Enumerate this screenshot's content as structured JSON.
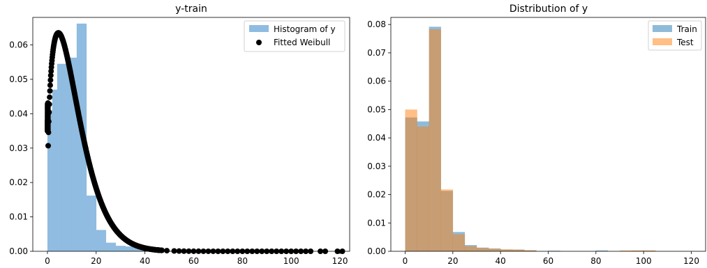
{
  "chart_data": [
    {
      "type": "histogram",
      "title": "y-train",
      "xlim": [
        -6,
        124
      ],
      "ylim": [
        0,
        0.068
      ],
      "xticks": [
        "0",
        "20",
        "40",
        "60",
        "80",
        "100",
        "120"
      ],
      "xtick_values": [
        0,
        20,
        40,
        60,
        80,
        100,
        120
      ],
      "yticks": [
        "0.00",
        "0.01",
        "0.02",
        "0.03",
        "0.04",
        "0.05",
        "0.06"
      ],
      "ytick_values": [
        0,
        0.01,
        0.02,
        0.03,
        0.04,
        0.05,
        0.06
      ],
      "legend_position": "top-right",
      "series": [
        {
          "name": "Histogram of y",
          "kind": "bars",
          "color": "#8fbce0",
          "bins": [
            {
              "x0": 0,
              "x1": 2,
              "value": 0.041
            },
            {
              "x0": 2,
              "x1": 4,
              "value": 0.047
            },
            {
              "x0": 4,
              "x1": 6,
              "value": 0.0545
            },
            {
              "x0": 6,
              "x1": 8,
              "value": 0.0545
            },
            {
              "x0": 8,
              "x1": 10,
              "value": 0.0563
            },
            {
              "x0": 10,
              "x1": 12,
              "value": 0.0563
            },
            {
              "x0": 12,
              "x1": 14,
              "value": 0.0662
            },
            {
              "x0": 14,
              "x1": 16,
              "value": 0.0662
            },
            {
              "x0": 16,
              "x1": 18,
              "value": 0.0162
            },
            {
              "x0": 18,
              "x1": 20,
              "value": 0.0162
            },
            {
              "x0": 20,
              "x1": 22,
              "value": 0.0062
            },
            {
              "x0": 22,
              "x1": 24,
              "value": 0.0062
            },
            {
              "x0": 24,
              "x1": 28,
              "value": 0.0025
            },
            {
              "x0": 28,
              "x1": 32,
              "value": 0.0016
            },
            {
              "x0": 32,
              "x1": 36,
              "value": 0.0014
            },
            {
              "x0": 36,
              "x1": 40,
              "value": 0.0011
            },
            {
              "x0": 40,
              "x1": 44,
              "value": 0.0006
            },
            {
              "x0": 44,
              "x1": 48,
              "value": 0.0003
            },
            {
              "x0": 48,
              "x1": 52,
              "value": 0.0002
            }
          ]
        },
        {
          "name": "Fitted Weibull",
          "kind": "scatter",
          "color": "#000000",
          "shape": 1.365,
          "scale": 11.8,
          "peak": 0.0635,
          "x_dense_range": [
            0,
            47
          ],
          "y_at_zero_range": [
            0.035,
            0.038
          ],
          "x_sparse": [
            49,
            52,
            54,
            56,
            58,
            60,
            62,
            64,
            66,
            68,
            70,
            72,
            74,
            76,
            78,
            80,
            82,
            84,
            86,
            88,
            90,
            92,
            94,
            96,
            98,
            100,
            102,
            104,
            106,
            108,
            112,
            114,
            119,
            121
          ]
        }
      ]
    },
    {
      "type": "histogram",
      "title": "Distribution of y",
      "xlim": [
        -6,
        126
      ],
      "ylim": [
        0,
        0.0825
      ],
      "xticks": [
        "0",
        "20",
        "40",
        "60",
        "80",
        "100",
        "120"
      ],
      "xtick_values": [
        0,
        20,
        40,
        60,
        80,
        100,
        120
      ],
      "yticks": [
        "0.00",
        "0.01",
        "0.02",
        "0.03",
        "0.04",
        "0.05",
        "0.06",
        "0.07",
        "0.08"
      ],
      "ytick_values": [
        0,
        0.01,
        0.02,
        0.03,
        0.04,
        0.05,
        0.06,
        0.07,
        0.08
      ],
      "legend_position": "top-right",
      "bin_edges": [
        0,
        5,
        10,
        15,
        20,
        25,
        30,
        35,
        40,
        45,
        50,
        55,
        60,
        65,
        70,
        75,
        80,
        85,
        90,
        95,
        100,
        105
      ],
      "series": [
        {
          "name": "Train",
          "color": "#1f77b4",
          "opacity": 0.5,
          "values": [
            0.0472,
            0.0458,
            0.0792,
            0.0213,
            0.0068,
            0.0022,
            0.0013,
            0.001,
            0.0006,
            0.0006,
            0.0003,
            0.0,
            0.0002,
            0.0,
            0.0,
            0.0,
            0.0003,
            0.0,
            0.0,
            0.0002,
            0.0002
          ]
        },
        {
          "name": "Test",
          "color": "#ff7f0e",
          "opacity": 0.5,
          "values": [
            0.05,
            0.044,
            0.0783,
            0.0218,
            0.006,
            0.0018,
            0.0012,
            0.0009,
            0.0007,
            0.0006,
            0.0004,
            0.0,
            0.0,
            0.0,
            0.0,
            0.0,
            0.0,
            0.0,
            0.0003,
            0.0003,
            0.0003
          ]
        }
      ]
    }
  ]
}
